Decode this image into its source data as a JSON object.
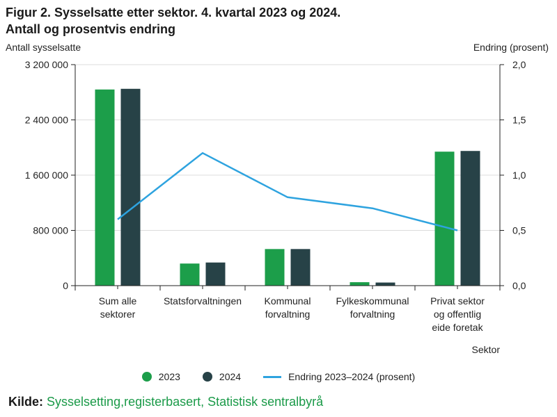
{
  "header": {
    "title_line1": "Figur 2. Sysselsatte etter sektor. 4. kvartal 2023 og 2024.",
    "title_line2": "Antall og prosentvis endring"
  },
  "source": {
    "label": "Kilde:",
    "text": "Sysselsetting,registerbasert, Statistisk sentralbyrå"
  },
  "colors": {
    "bar2023": "#1c9e4a",
    "bar2024": "#274247",
    "line": "#2ea3df",
    "grid": "#dcdcdc",
    "axis": "#222222"
  },
  "chart_data": {
    "type": "bar",
    "title": "Figur 2. Sysselsatte etter sektor. 4. kvartal 2023 og 2024. Antall og prosentvis endring",
    "xlabel": "Sektor",
    "ylabel": "Antall sysselsatte",
    "ylabel_right": "Endring (prosent)",
    "ylim": [
      0,
      3200000
    ],
    "ylim_right": [
      0,
      2.0
    ],
    "yticks": [
      0,
      800000,
      1600000,
      2400000,
      3200000
    ],
    "yticks_labels": [
      "0",
      "800 000",
      "1 600 000",
      "2 400 000",
      "3 200 000"
    ],
    "yticks_right": [
      0,
      0.5,
      1.0,
      1.5,
      2.0
    ],
    "yticks_right_labels": [
      "0,0",
      "0,5",
      "1,0",
      "1,5",
      "2,0"
    ],
    "categories": [
      [
        "Sum alle",
        "sektorer"
      ],
      [
        "Statsforvaltningen"
      ],
      [
        "Kommunal",
        "forvaltning"
      ],
      [
        "Fylkeskommunal",
        "forvaltning"
      ],
      [
        "Privat sektor",
        "og offentlig",
        "eide foretak"
      ]
    ],
    "series": [
      {
        "name": "2023",
        "kind": "bar",
        "values": [
          2840000,
          320000,
          530000,
          50000,
          1940000
        ]
      },
      {
        "name": "2024",
        "kind": "bar",
        "values": [
          2850000,
          335000,
          530000,
          45000,
          1950000
        ]
      },
      {
        "name": "Endring 2023–2024 (prosent)",
        "kind": "line",
        "axis": "right",
        "values": [
          0.6,
          1.2,
          0.8,
          0.7,
          0.5
        ]
      }
    ],
    "legend": "bottom"
  }
}
